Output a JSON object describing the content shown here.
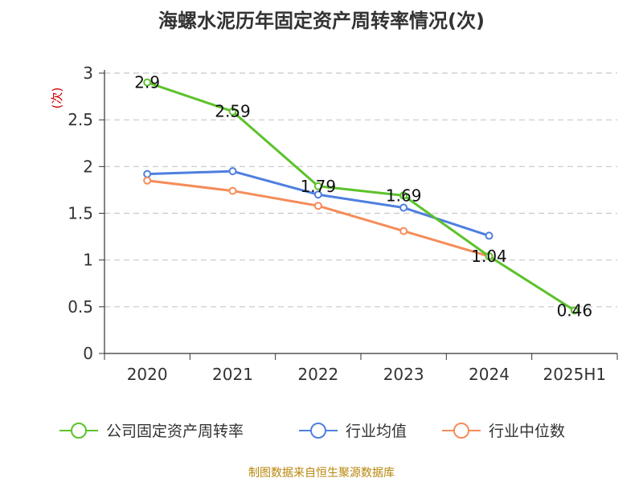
{
  "chart_data": {
    "type": "line",
    "title": "海螺水泥历年固定资产周转率情况(次)",
    "ylabel": "(次)",
    "xlabel": "",
    "categories": [
      "2020",
      "2021",
      "2022",
      "2023",
      "2024",
      "2025H1"
    ],
    "ylim": [
      0,
      3
    ],
    "yticks": [
      0,
      0.5,
      1,
      1.5,
      2,
      2.5,
      3
    ],
    "grid": true,
    "legend_position": "bottom",
    "series": [
      {
        "name": "公司固定资产周转率",
        "color": "#5cc22b",
        "values": [
          2.9,
          2.59,
          1.79,
          1.69,
          1.04,
          0.46
        ],
        "labels": [
          "2.9",
          "2.59",
          "1.79",
          "1.69",
          "1.04",
          "0.46"
        ]
      },
      {
        "name": "行业均值",
        "color": "#4e7fdf",
        "values": [
          1.92,
          1.95,
          1.7,
          1.56,
          1.26,
          null
        ]
      },
      {
        "name": "行业中位数",
        "color": "#f58c59",
        "values": [
          1.85,
          1.74,
          1.58,
          1.31,
          1.04,
          null
        ]
      }
    ]
  },
  "footer": {
    "source": "制图数据来自恒生聚源数据库"
  }
}
